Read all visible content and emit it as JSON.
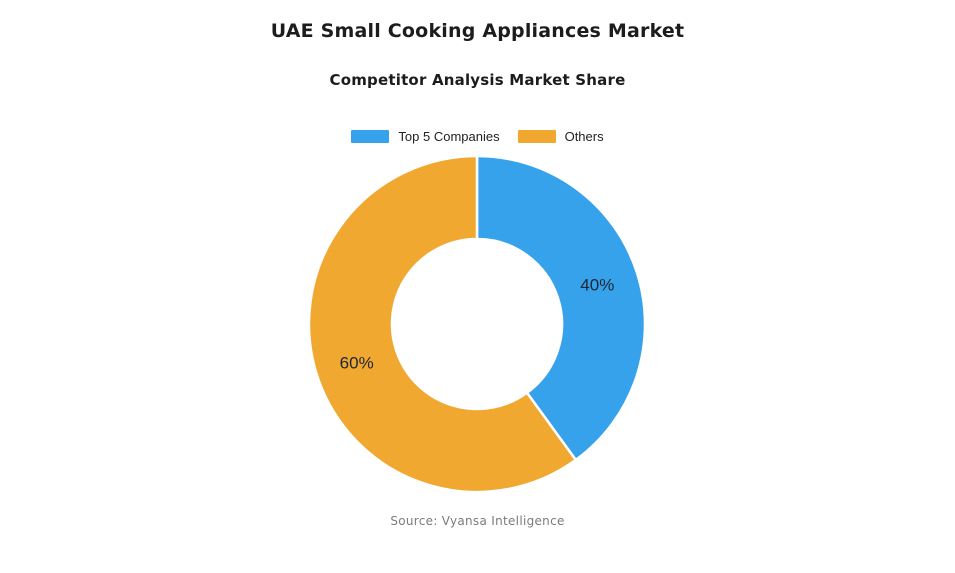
{
  "chart_data": {
    "type": "pie",
    "subtype": "donut",
    "title": "UAE Small Cooking Appliances Market",
    "subtitle": "Competitor Analysis Market Share",
    "source": "Source: Vyansa Intelligence",
    "legend_position": "top",
    "direction": "clockwise",
    "start_angle_deg": 0,
    "inner_radius_ratio": 0.506,
    "border_color": "#ffffff",
    "border_width": 2.5,
    "value_label_color": "#1c2733",
    "segments": [
      {
        "label": "Top 5 Companies",
        "value": 40,
        "display": "40%",
        "color": "#36A2EB"
      },
      {
        "label": "Others",
        "value": 60,
        "display": "60%",
        "color": "#F0A830"
      }
    ]
  }
}
